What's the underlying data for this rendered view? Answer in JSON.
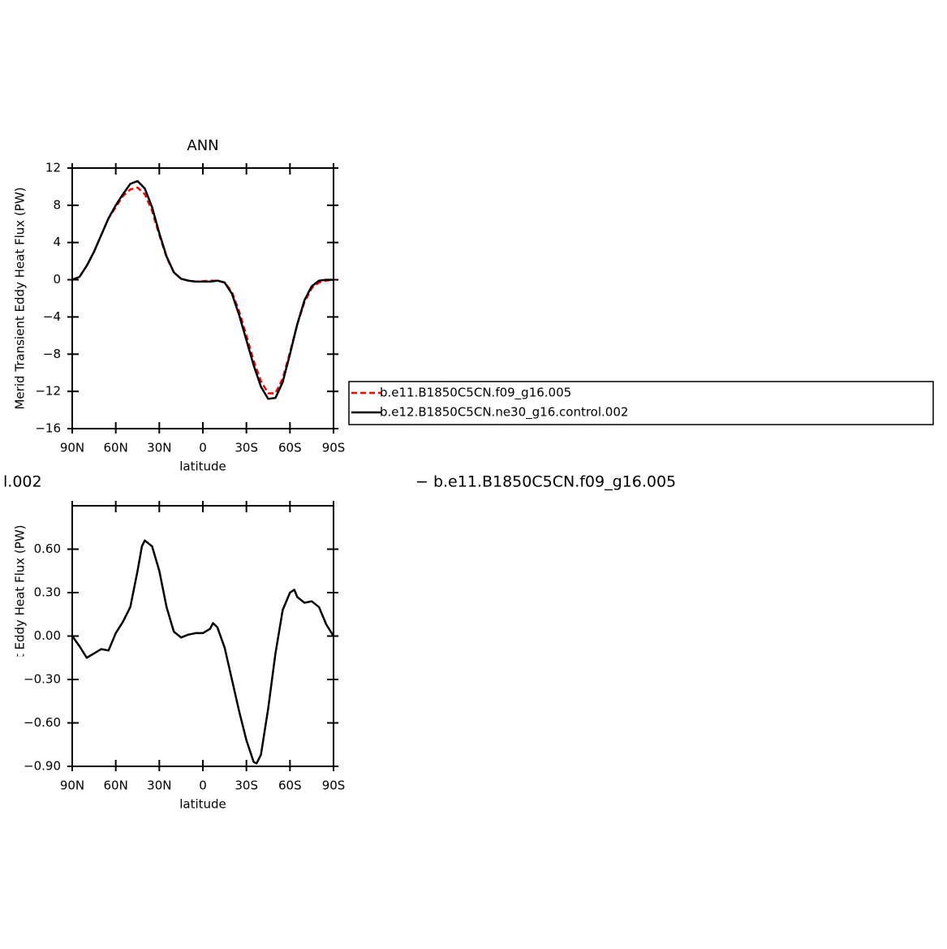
{
  "chart_data": [
    {
      "type": "line",
      "title": "ANN",
      "xlabel": "latitude",
      "ylabel": "Merid Transient Eddy Heat Flux (PW)",
      "xlim": [
        90,
        -90
      ],
      "xticks": [
        {
          "value": 90,
          "label": "90N"
        },
        {
          "value": 60,
          "label": "60N"
        },
        {
          "value": 30,
          "label": "30N"
        },
        0,
        {
          "value": -30,
          "label": "30S"
        },
        {
          "value": -60,
          "label": "60S"
        },
        {
          "value": -90,
          "label": "90S"
        }
      ],
      "ylim": [
        -16,
        12
      ],
      "yticks": [
        {
          "value": -16,
          "label": "−16"
        },
        {
          "value": -12,
          "label": "−12"
        },
        {
          "value": -8,
          "label": "−8"
        },
        {
          "value": -4,
          "label": "−4"
        },
        0,
        4,
        8,
        12
      ],
      "x": [
        90,
        85,
        80,
        75,
        70,
        65,
        60,
        55,
        50,
        45,
        40,
        35,
        30,
        25,
        20,
        15,
        10,
        5,
        0,
        -5,
        -10,
        -15,
        -20,
        -25,
        -30,
        -35,
        -40,
        -45,
        -50,
        -55,
        -60,
        -65,
        -70,
        -75,
        -80,
        -85,
        -90
      ],
      "legend": "right",
      "series": [
        {
          "name": "b.e11.B1850C5CN.f09_g16.005",
          "color": "#ff0000",
          "dash": true,
          "values": [
            0,
            0.3,
            1.5,
            3,
            4.8,
            6.6,
            7.8,
            9,
            9.7,
            9.9,
            9.2,
            7.4,
            4.8,
            2.4,
            0.8,
            0.1,
            -0.1,
            -0.2,
            -0.15,
            -0.1,
            -0.1,
            -0.3,
            -1.3,
            -3.4,
            -6,
            -8.7,
            -10.9,
            -12.2,
            -12.2,
            -10.6,
            -7.8,
            -4.8,
            -2.4,
            -0.9,
            -0.3,
            -0.1,
            0
          ]
        },
        {
          "name": "b.e12.B1850C5CN.ne30_g16.control.002",
          "color": "#000000",
          "dash": false,
          "values": [
            0,
            0.3,
            1.5,
            3,
            4.8,
            6.6,
            8,
            9.2,
            10.3,
            10.6,
            9.8,
            7.8,
            5,
            2.5,
            0.8,
            0.1,
            -0.1,
            -0.2,
            -0.2,
            -0.2,
            -0.1,
            -0.3,
            -1.5,
            -3.8,
            -6.5,
            -9.2,
            -11.5,
            -12.8,
            -12.7,
            -11,
            -8,
            -4.8,
            -2.2,
            -0.7,
            -0.1,
            0,
            0
          ]
        }
      ]
    },
    {
      "type": "line",
      "title": [
        "l.002",
        "− b.e11.B1850C5CN.f09_g16.005"
      ],
      "xlabel": "latitude",
      "ylabel": "Merid Transient Eddy Heat Flux (PW)",
      "xlim": [
        90,
        -90
      ],
      "xticks": [
        {
          "value": 90,
          "label": "90N"
        },
        {
          "value": 60,
          "label": "60N"
        },
        {
          "value": 30,
          "label": "30N"
        },
        0,
        {
          "value": -30,
          "label": "30S"
        },
        {
          "value": -60,
          "label": "60S"
        },
        {
          "value": -90,
          "label": "90S"
        }
      ],
      "ylim": [
        -0.9,
        0.9
      ],
      "yticks": [
        {
          "value": -0.9,
          "label": "−0.90"
        },
        {
          "value": -0.6,
          "label": "−0.60"
        },
        {
          "value": -0.3,
          "label": "−0.30"
        },
        {
          "value": 0,
          "label": "0.00"
        },
        {
          "value": 0.3,
          "label": "0.30"
        },
        {
          "value": 0.6,
          "label": "0.60"
        }
      ],
      "x": [
        90,
        85,
        80,
        75,
        70,
        65,
        60,
        55,
        50,
        45,
        42,
        40,
        35,
        30,
        27,
        25,
        20,
        15,
        10,
        5,
        0,
        -5,
        -7,
        -10,
        -15,
        -20,
        -25,
        -30,
        -35,
        -37,
        -40,
        -45,
        -50,
        -55,
        -60,
        -63,
        -65,
        -70,
        -75,
        -80,
        -85,
        -90
      ],
      "series": [
        {
          "color": "#000000",
          "dash": false,
          "values": [
            0,
            -0.07,
            -0.15,
            -0.12,
            -0.09,
            -0.1,
            0.02,
            0.1,
            0.2,
            0.45,
            0.62,
            0.66,
            0.62,
            0.45,
            0.3,
            0.2,
            0.03,
            -0.01,
            0.01,
            0.02,
            0.02,
            0.05,
            0.09,
            0.06,
            -0.08,
            -0.3,
            -0.52,
            -0.72,
            -0.87,
            -0.88,
            -0.82,
            -0.5,
            -0.12,
            0.18,
            0.3,
            0.32,
            0.27,
            0.23,
            0.24,
            0.2,
            0.08,
            0
          ]
        }
      ]
    }
  ]
}
